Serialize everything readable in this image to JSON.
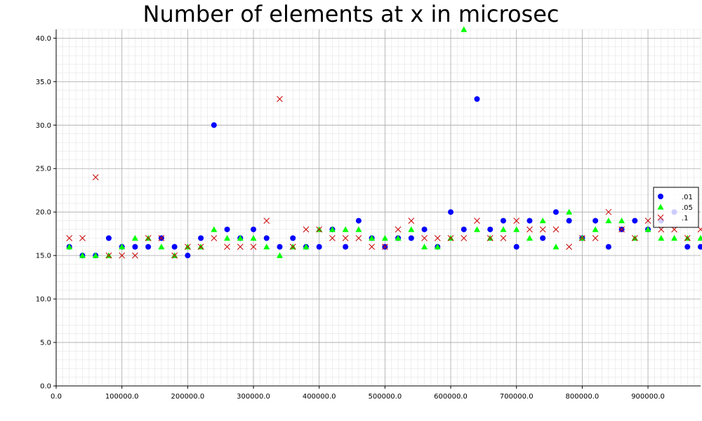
{
  "chart_data": {
    "type": "scatter",
    "title": "Number of elements at x in microsec",
    "xlabel": "",
    "ylabel": "",
    "xlim": [
      0,
      980000
    ],
    "ylim": [
      0,
      41
    ],
    "grid": true,
    "legend_position": "right",
    "x_ticks": [
      "0.0",
      "100000.0",
      "200000.0",
      "300000.0",
      "400000.0",
      "500000.0",
      "600000.0",
      "700000.0",
      "800000.0",
      "900000.0"
    ],
    "y_ticks": [
      "0.0",
      "5.0",
      "10.0",
      "15.0",
      "20.0",
      "25.0",
      "30.0",
      "35.0",
      "40.0"
    ],
    "x": [
      20000,
      40000,
      60000,
      80000,
      100000,
      120000,
      140000,
      160000,
      180000,
      200000,
      220000,
      240000,
      260000,
      280000,
      300000,
      320000,
      340000,
      360000,
      380000,
      400000,
      420000,
      440000,
      460000,
      480000,
      500000,
      520000,
      540000,
      560000,
      580000,
      600000,
      620000,
      640000,
      660000,
      680000,
      700000,
      720000,
      740000,
      760000,
      780000,
      800000,
      820000,
      840000,
      860000,
      880000,
      900000,
      920000,
      940000,
      960000,
      980000
    ],
    "series": [
      {
        "name": ".01",
        "marker": "circle",
        "color": "#0000ff",
        "values": [
          16,
          15,
          15,
          17,
          16,
          16,
          16,
          17,
          16,
          15,
          17,
          30,
          18,
          17,
          18,
          17,
          16,
          17,
          16,
          16,
          18,
          16,
          19,
          17,
          16,
          17,
          17,
          18,
          16,
          20,
          18,
          33,
          18,
          19,
          16,
          19,
          17,
          20,
          19,
          17,
          19,
          16,
          18,
          19,
          18,
          19,
          20,
          16,
          16
        ]
      },
      {
        "name": ".05",
        "marker": "triangle",
        "color": "#00ff00",
        "values": [
          16,
          15,
          15,
          15,
          16,
          17,
          17,
          16,
          15,
          16,
          16,
          18,
          17,
          17,
          17,
          16,
          15,
          16,
          16,
          18,
          18,
          18,
          18,
          17,
          17,
          17,
          18,
          16,
          16,
          17,
          41,
          18,
          17,
          18,
          18,
          17,
          19,
          16,
          20,
          17,
          18,
          19,
          19,
          17,
          18,
          17,
          17,
          17,
          17
        ]
      },
      {
        "name": ".1",
        "marker": "x",
        "color": "#cc0000",
        "values": [
          17,
          17,
          24,
          15,
          15,
          15,
          17,
          17,
          15,
          16,
          16,
          17,
          16,
          16,
          16,
          19,
          33,
          16,
          18,
          18,
          17,
          17,
          17,
          16,
          16,
          18,
          19,
          17,
          17,
          17,
          17,
          19,
          17,
          17,
          19,
          18,
          18,
          18,
          16,
          17,
          17,
          20,
          18,
          17,
          19,
          18,
          18,
          17,
          18
        ]
      }
    ]
  }
}
